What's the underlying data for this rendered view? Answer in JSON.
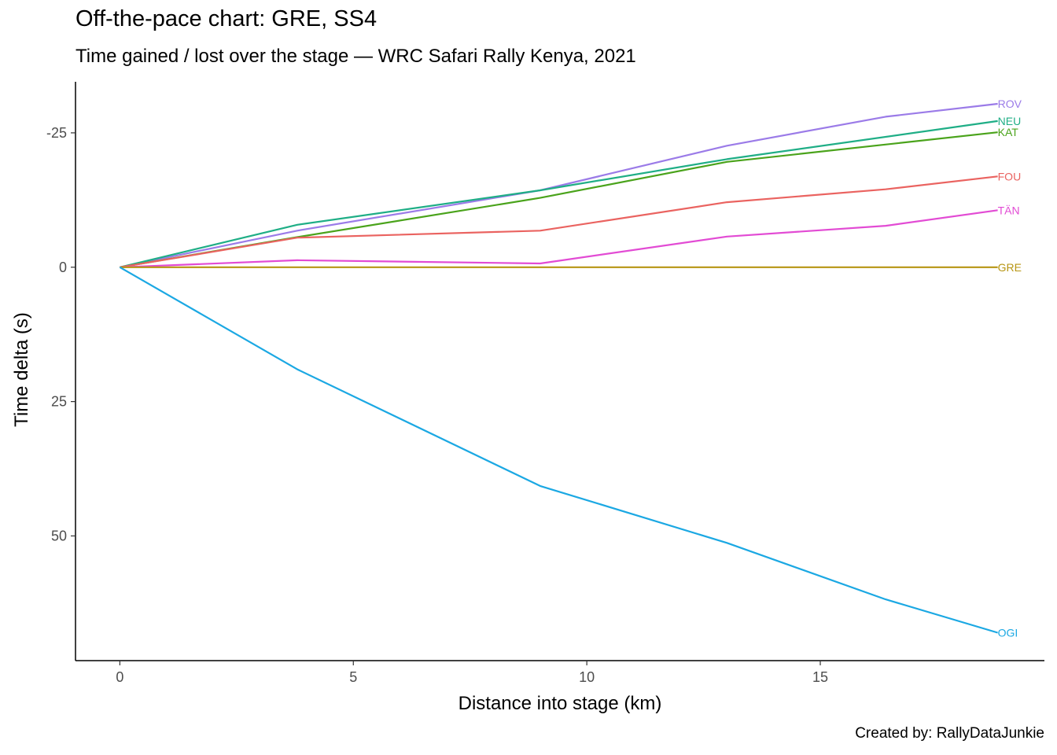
{
  "chart_data": {
    "type": "line",
    "title": "Off-the-pace chart: GRE, SS4",
    "subtitle": "Time gained / lost over the stage — WRC Safari Rally Kenya, 2021",
    "caption": "Created by: RallyDataJunkie",
    "xlabel": "Distance into stage (km)",
    "ylabel": "Time delta (s)",
    "xlim": [
      -0.95,
      19.8
    ],
    "ylim": [
      -34.5,
      73.2
    ],
    "y_reversed": true,
    "grid": false,
    "legend": "direct labels at line ends",
    "x_ticks": [
      0,
      5,
      10,
      15
    ],
    "x_tick_labels": [
      "0",
      "5",
      "10",
      "15"
    ],
    "y_ticks": [
      -25,
      0,
      25,
      50
    ],
    "y_tick_labels": [
      "-25",
      "0",
      "25",
      "50"
    ],
    "series": [
      {
        "name": "ROV",
        "color": "#9b7be8",
        "x": [
          0,
          3.8,
          9,
          13,
          16.4,
          18.8
        ],
        "y": [
          0,
          -6.8,
          -14.3,
          -22.6,
          -28,
          -30.4
        ]
      },
      {
        "name": "NEU",
        "color": "#1fae86",
        "x": [
          0,
          3.8,
          9,
          13,
          18.8
        ],
        "y": [
          0,
          -7.9,
          -14.3,
          -20.1,
          -27.2
        ]
      },
      {
        "name": "KAT",
        "color": "#4aa31b",
        "x": [
          0,
          3.8,
          9,
          13,
          18.8
        ],
        "y": [
          0,
          -5.6,
          -12.9,
          -19.6,
          -25.1
        ]
      },
      {
        "name": "FOU",
        "color": "#ea6360",
        "x": [
          0,
          3.8,
          9,
          13,
          16.4,
          18.8
        ],
        "y": [
          0,
          -5.5,
          -6.8,
          -12.1,
          -14.5,
          -16.9
        ]
      },
      {
        "name": "TÄN",
        "color": "#e24bd4",
        "x": [
          0,
          3.8,
          9,
          13,
          16.4,
          18.8
        ],
        "y": [
          0,
          -1.3,
          -0.7,
          -5.7,
          -7.7,
          -10.6
        ]
      },
      {
        "name": "GRE",
        "color": "#b79512",
        "x": [
          0,
          18.8
        ],
        "y": [
          0,
          0
        ]
      },
      {
        "name": "OGI",
        "color": "#1ba8e3",
        "x": [
          0,
          3.8,
          9,
          13,
          16.4,
          18.8
        ],
        "y": [
          0,
          19,
          40.7,
          51.3,
          61.8,
          68
        ]
      }
    ]
  }
}
